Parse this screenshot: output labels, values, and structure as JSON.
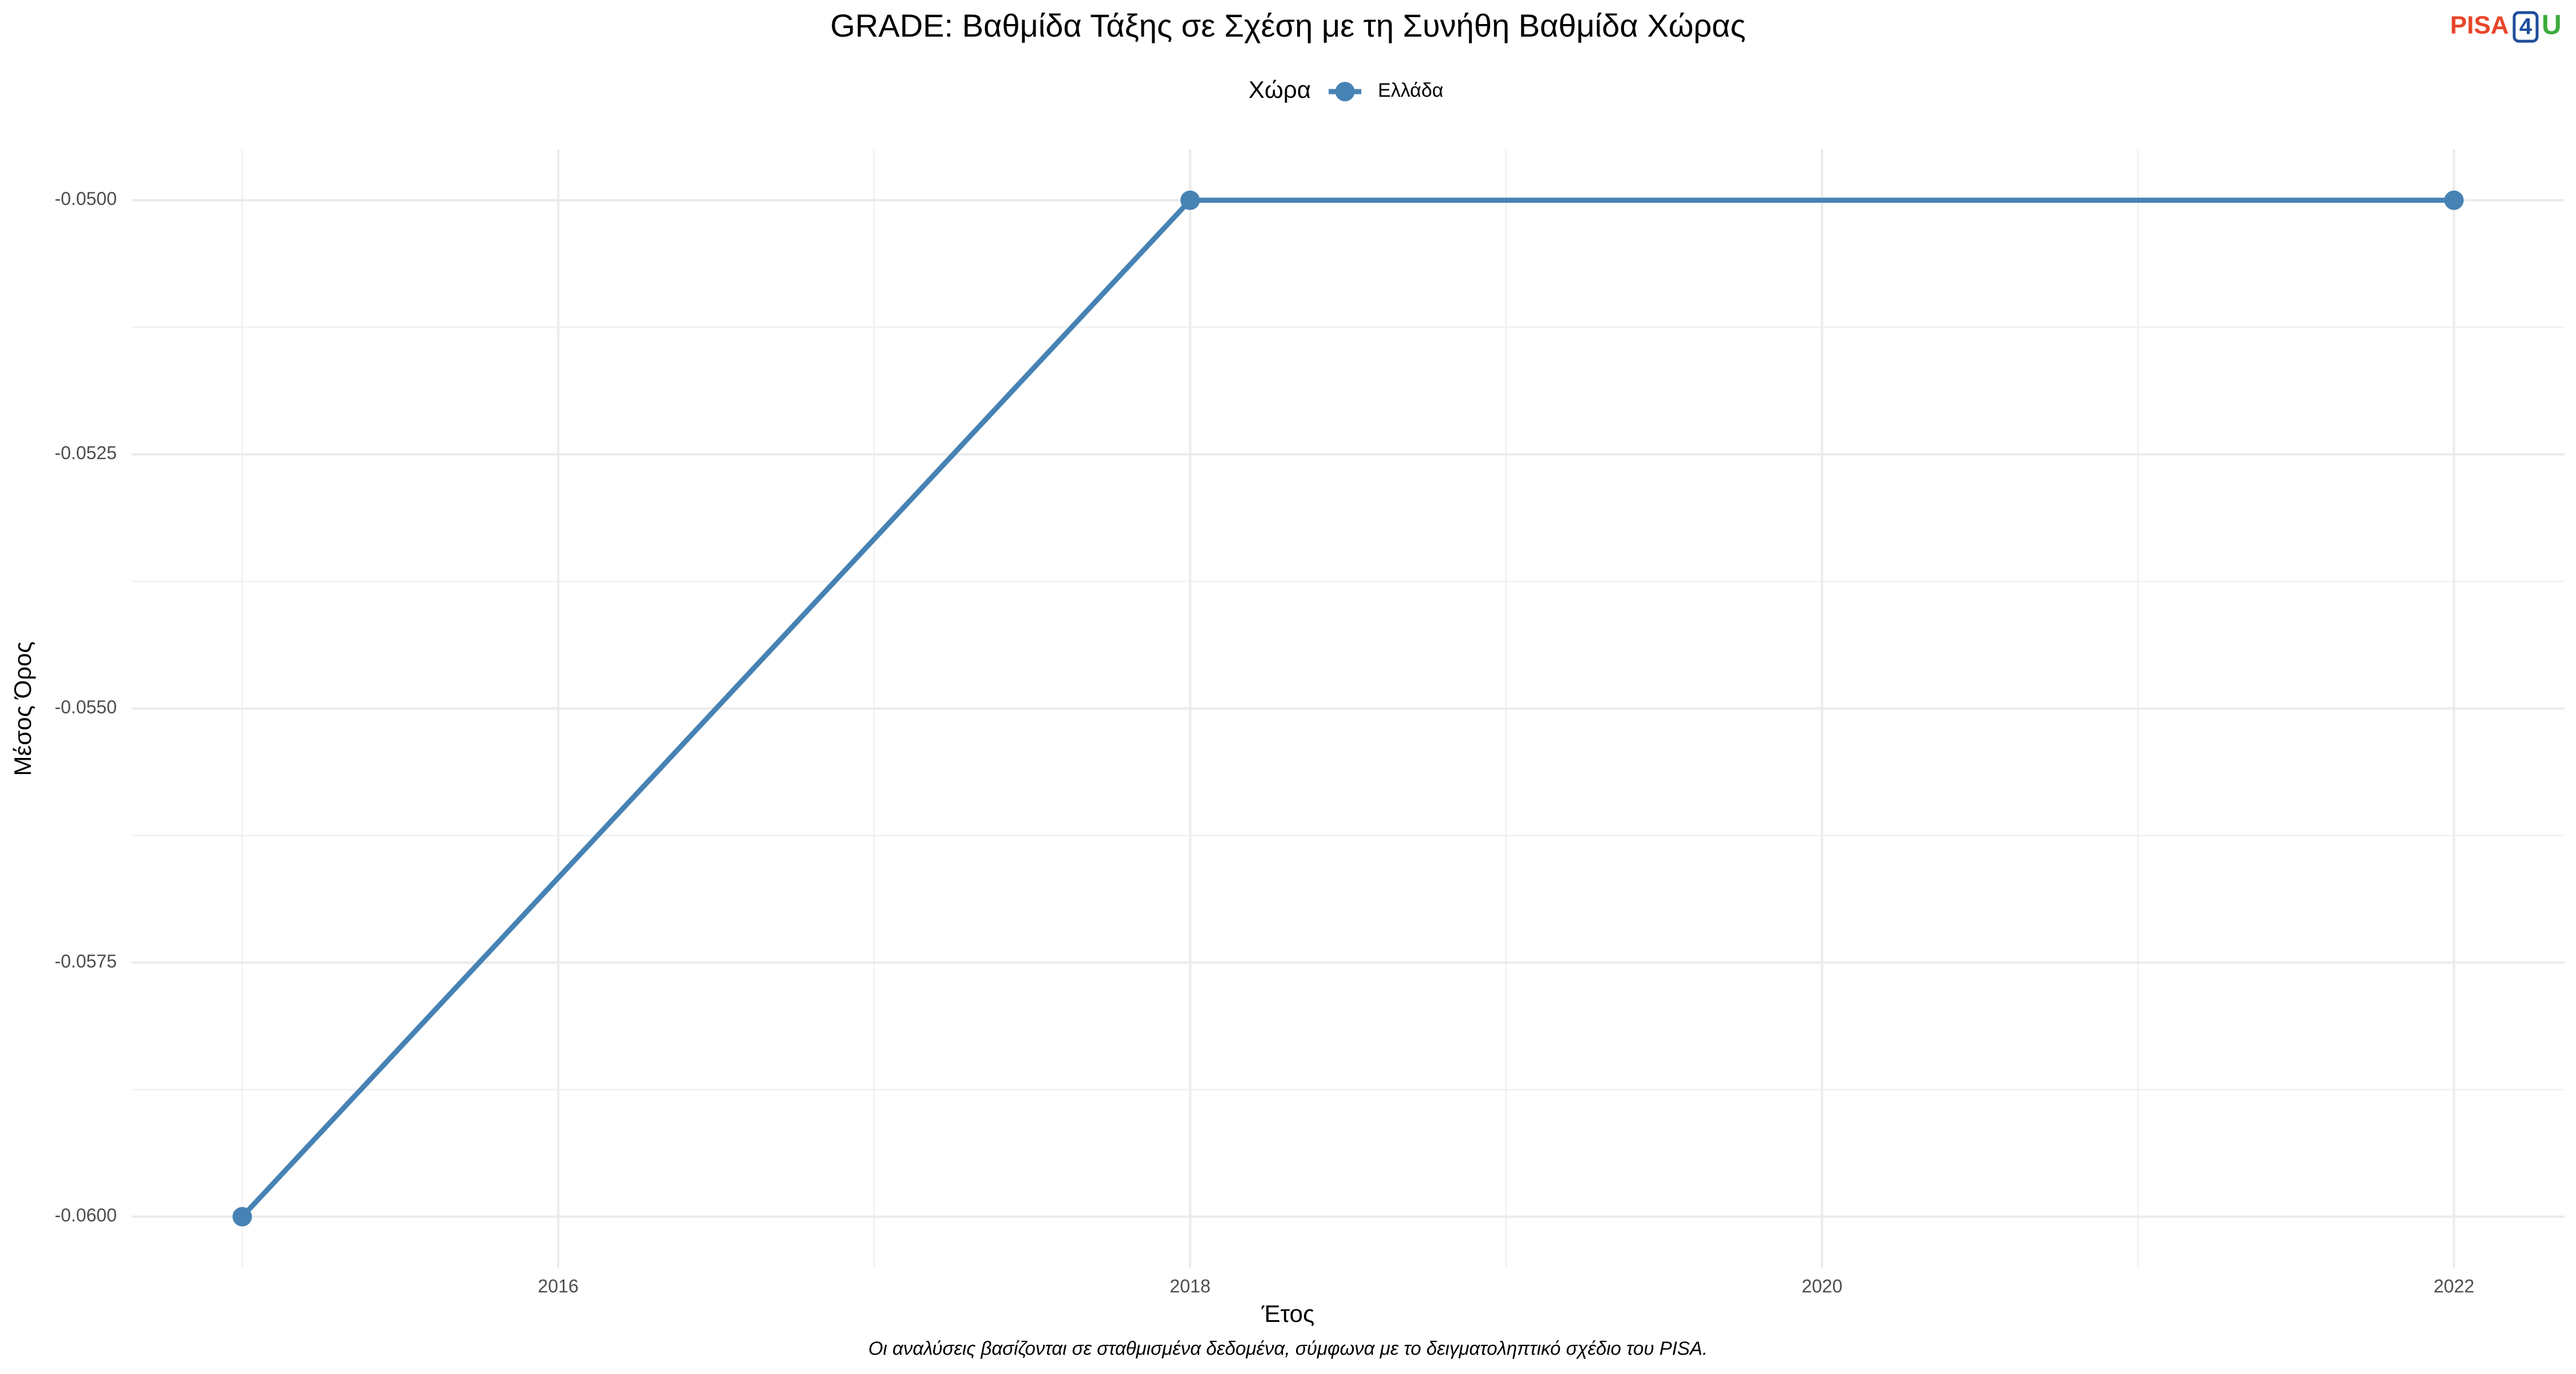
{
  "chart_data": {
    "type": "line",
    "title": "GRADE: Βαθμίδα Τάξης σε Σχέση με τη Συνήθη Βαθμίδα Χώρας",
    "legend_title": "Χώρα",
    "legend_position": "top",
    "x_label": "Έτος",
    "y_label": "Μέσος Όρος",
    "caption": "Οι αναλύσεις βασίζονται σε σταθμισμένα δεδομένα, σύμφωνα με το δειγματοληπτικό σχέδιο του PISA.",
    "logo": [
      "PISA",
      "4",
      "U"
    ],
    "x": [
      2015,
      2018,
      2022
    ],
    "series": [
      {
        "name": "Ελλάδα",
        "color": "#4682b4",
        "values": [
          -0.06,
          -0.05,
          -0.05
        ]
      }
    ],
    "xlim": [
      2014.65,
      2022.35
    ],
    "xticks": [
      2016,
      2018,
      2020,
      2022
    ],
    "x_minor_ticks": [
      2015,
      2017,
      2019,
      2021
    ],
    "ylim": [
      -0.0605,
      -0.0495
    ],
    "yticks": [
      {
        "value": -0.06,
        "label": "-0.0600"
      },
      {
        "value": -0.0575,
        "label": "-0.0575"
      },
      {
        "value": -0.055,
        "label": "-0.0550"
      },
      {
        "value": -0.0525,
        "label": "-0.0525"
      },
      {
        "value": -0.05,
        "label": "-0.0500"
      }
    ],
    "y_minor_ticks": [
      -0.05875,
      -0.05625,
      -0.05375,
      -0.05125
    ],
    "grid": true
  }
}
